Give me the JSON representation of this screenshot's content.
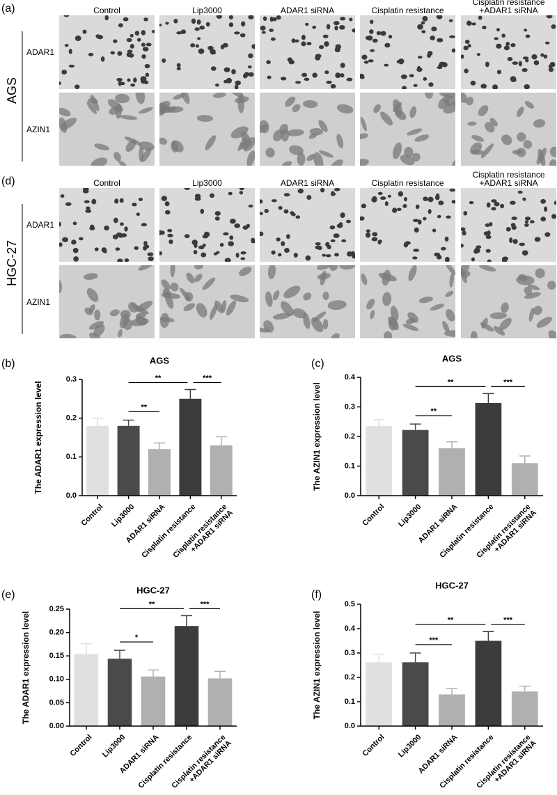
{
  "image_panels": [
    {
      "panel": "(a)",
      "cell_line": "AGS",
      "columns": [
        "Control",
        "Lip3000",
        "ADAR1 siRNA",
        "Cisplatin resistance",
        "Cisplatin resistance\n+ADAR1 siRNA"
      ],
      "rows": [
        "ADAR1",
        "AZIN1"
      ]
    },
    {
      "panel": "(d)",
      "cell_line": "HGC-27",
      "columns": [
        "Control",
        "Lip3000",
        "ADAR1 siRNA",
        "Cisplatin resistance",
        "Cisplatin resistance\n+ADAR1 siRNA"
      ],
      "rows": [
        "ADAR1",
        "AZIN1"
      ]
    }
  ],
  "chart_data": [
    {
      "panel": "(b)",
      "type": "bar",
      "title": "AGS",
      "ylabel": "The ADAR1 expression level",
      "categories": [
        "Control",
        "Lip3000",
        "ADAR1 siRNA",
        "Cisplatin resistance",
        "Cisplatin resistance\n+ADAR1 siRNA"
      ],
      "values": [
        0.18,
        0.18,
        0.12,
        0.25,
        0.13
      ],
      "errors": [
        0.02,
        0.015,
        0.016,
        0.024,
        0.022
      ],
      "colors": [
        "#e0e0e0",
        "#4a4a4a",
        "#b0b0b0",
        "#3c3c3c",
        "#b0b0b0"
      ],
      "ylim": [
        0,
        0.3
      ],
      "yticks": [
        {
          "value": 0,
          "label": "0.0"
        },
        0.1,
        0.2,
        0.3
      ],
      "significance": [
        "**",
        "**",
        "***"
      ]
    },
    {
      "panel": "(c)",
      "type": "bar",
      "title": "AGS",
      "ylabel": "The AZIN1 expression level",
      "categories": [
        "Control",
        "Lip3000",
        "ADAR1 siRNA",
        "Cisplatin resistance",
        "Cisplatin resistance\n+ADAR1 siRNA"
      ],
      "values": [
        0.235,
        0.222,
        0.16,
        0.313,
        0.11
      ],
      "errors": [
        0.022,
        0.02,
        0.022,
        0.032,
        0.024
      ],
      "colors": [
        "#e0e0e0",
        "#4a4a4a",
        "#b0b0b0",
        "#3c3c3c",
        "#b0b0b0"
      ],
      "ylim": [
        0,
        0.4
      ],
      "yticks": [
        {
          "value": 0,
          "label": "0.0"
        },
        0.1,
        0.2,
        0.3,
        0.4
      ],
      "significance": [
        "**",
        "**",
        "***"
      ]
    },
    {
      "panel": "(e)",
      "type": "bar",
      "title": "HGC-27",
      "ylabel": "The ADAR1 expression level",
      "categories": [
        "Control",
        "Lip3000",
        "ADAR1 siRNA",
        "Cisplatin resistance",
        "Cisplatin resistance\n+ADAR1 siRNA"
      ],
      "values": [
        0.154,
        0.144,
        0.106,
        0.214,
        0.102
      ],
      "errors": [
        0.022,
        0.018,
        0.014,
        0.022,
        0.015
      ],
      "colors": [
        "#e0e0e0",
        "#4a4a4a",
        "#b0b0b0",
        "#3c3c3c",
        "#b0b0b0"
      ],
      "ylim": [
        0,
        0.25
      ],
      "yticks": [
        {
          "value": 0,
          "label": "0.00"
        },
        0.05,
        {
          "value": 0.1,
          "label": "0.10"
        },
        0.15,
        {
          "value": 0.2,
          "label": "0.20"
        },
        0.25
      ],
      "significance": [
        "**",
        "*",
        "***"
      ]
    },
    {
      "panel": "(f)",
      "type": "bar",
      "title": "HGC-27",
      "ylabel": "The AZIN1 expression level",
      "categories": [
        "Control",
        "Lip3000",
        "ADAR1 siRNA",
        "Cisplatin resistance",
        "Cisplatin resistance\n+ADAR1 siRNA"
      ],
      "values": [
        0.262,
        0.262,
        0.13,
        0.35,
        0.142
      ],
      "errors": [
        0.033,
        0.038,
        0.024,
        0.038,
        0.022
      ],
      "colors": [
        "#e0e0e0",
        "#4a4a4a",
        "#b0b0b0",
        "#3c3c3c",
        "#b0b0b0"
      ],
      "ylim": [
        0,
        0.5
      ],
      "yticks": [
        {
          "value": 0,
          "label": "0.0"
        },
        0.1,
        0.2,
        0.3,
        0.4,
        0.5
      ],
      "significance": [
        "**",
        "***",
        "***"
      ]
    }
  ]
}
